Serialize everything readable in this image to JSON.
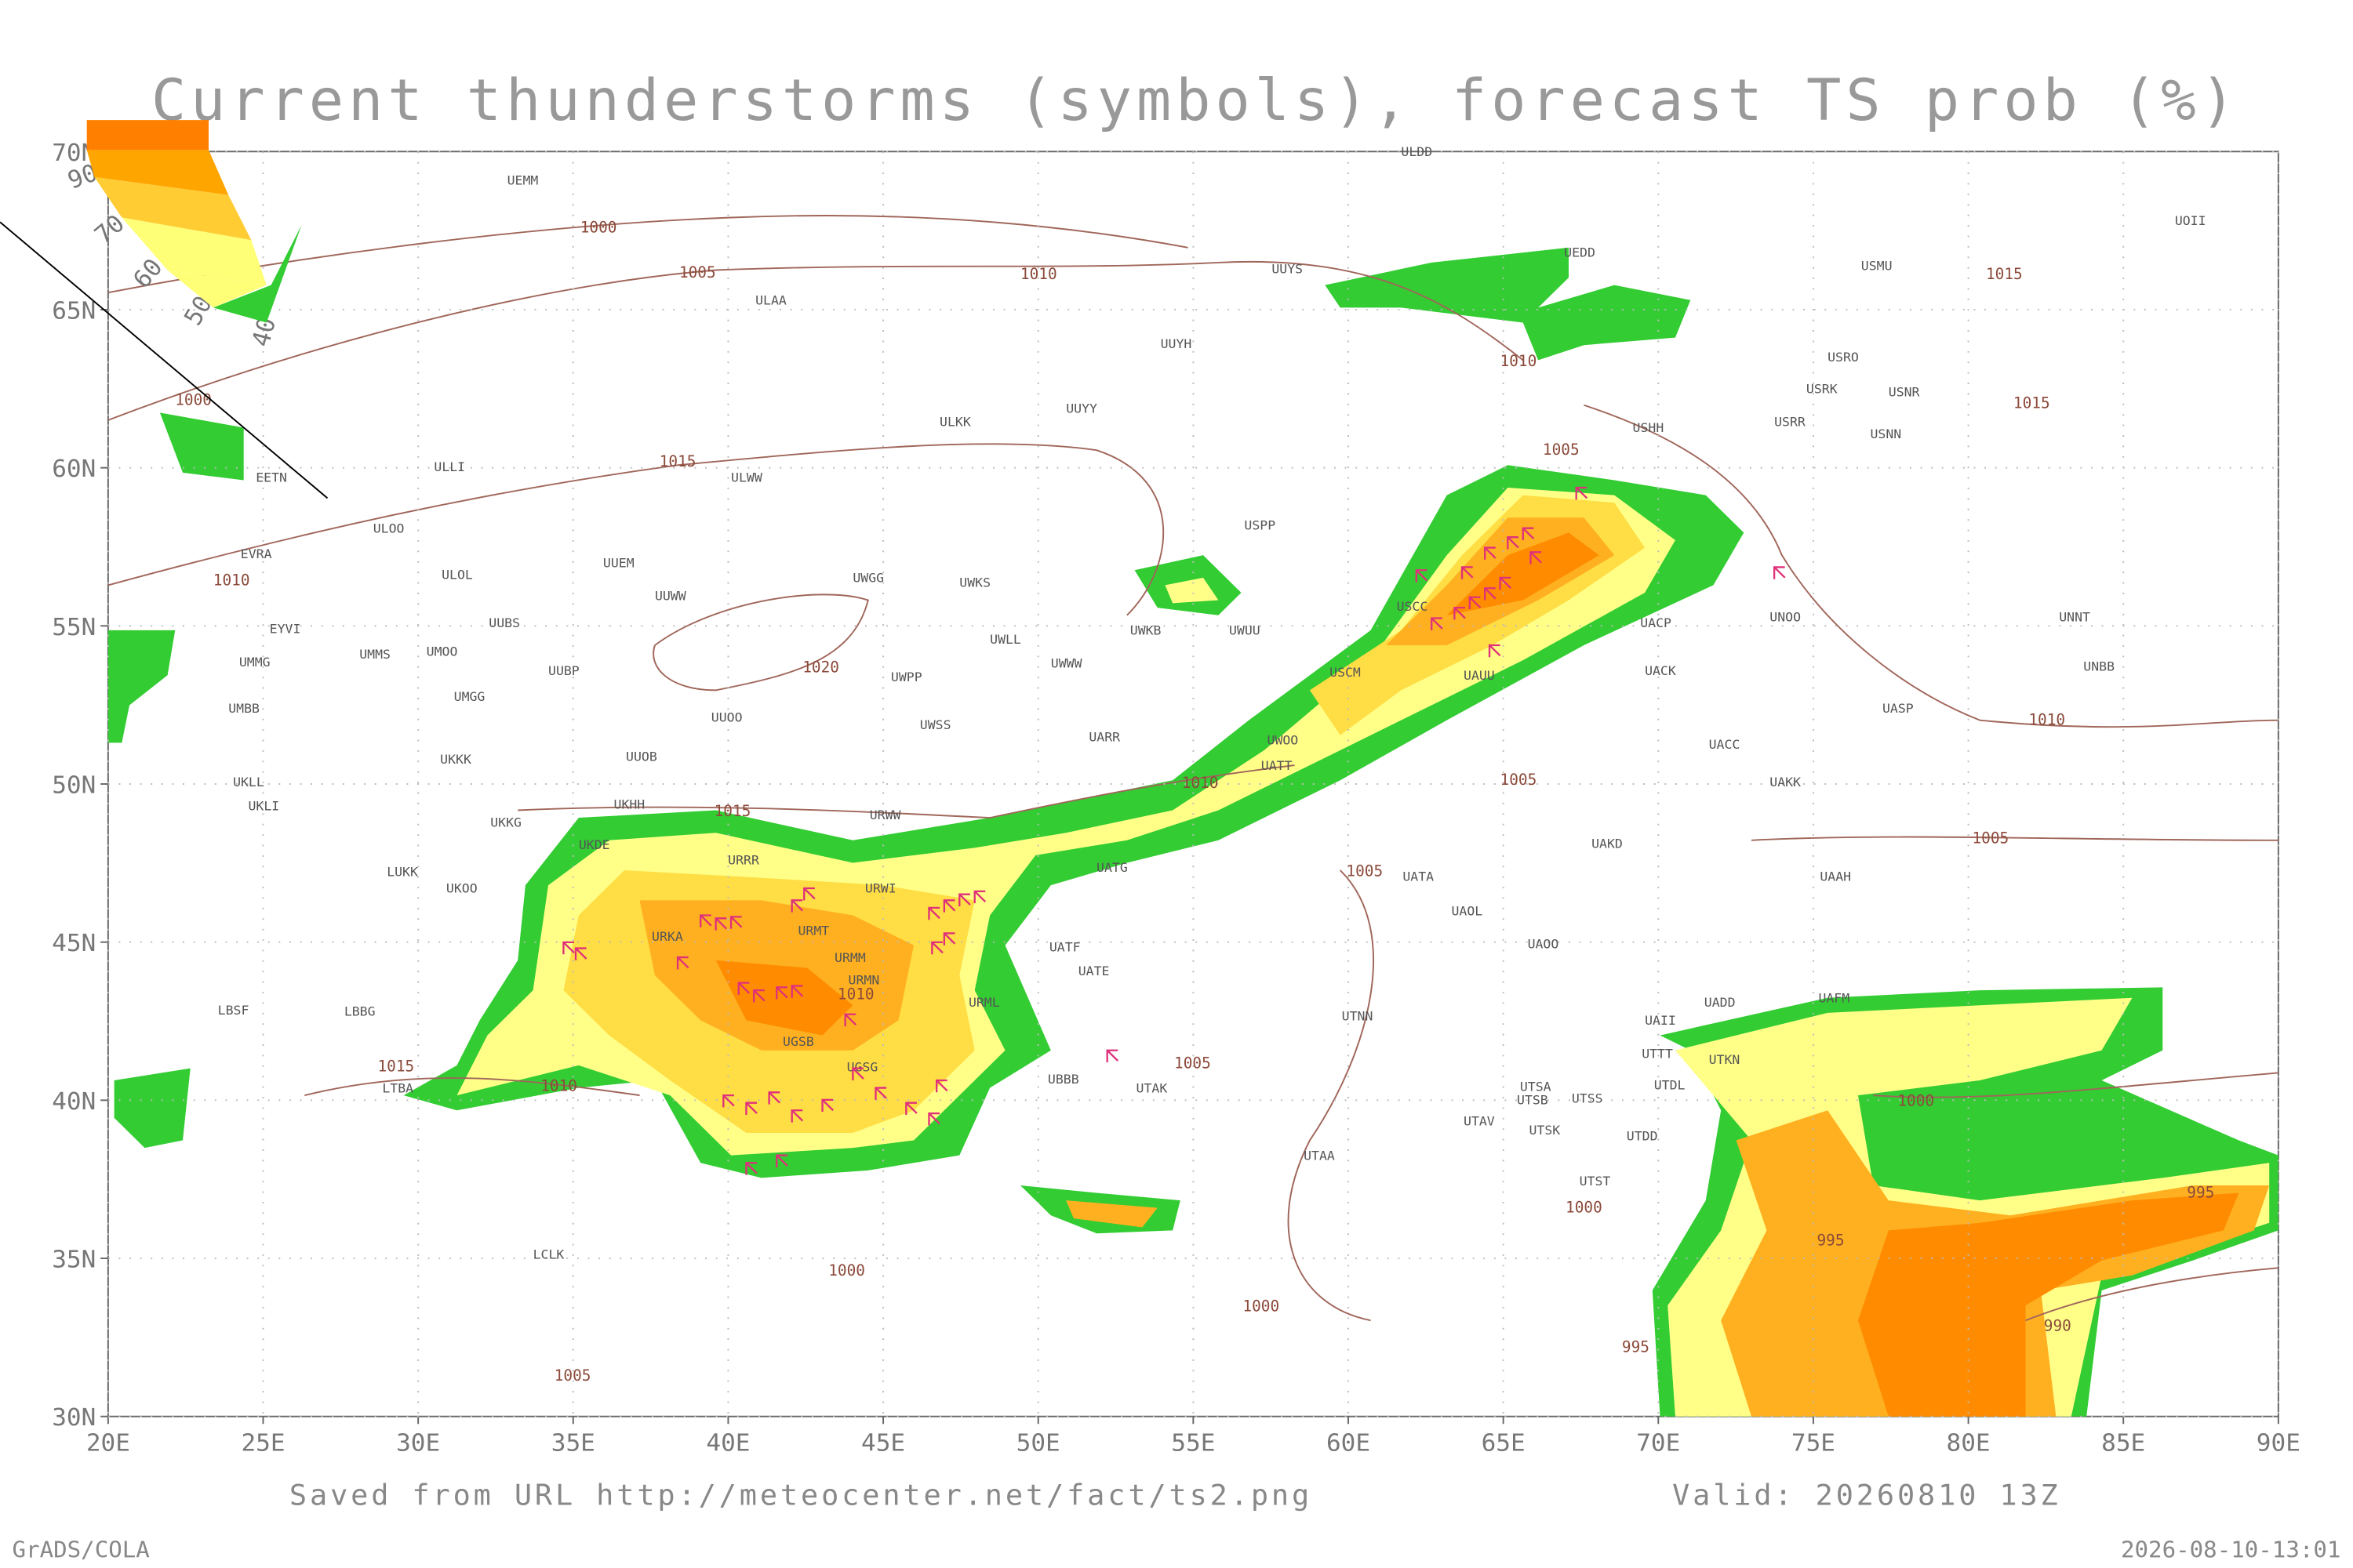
{
  "map": {
    "title": "Current thunderstorms (symbols), forecast TS prob (%)",
    "lon_ticks": [
      {
        "value": 20,
        "label": "20E"
      },
      {
        "value": 25,
        "label": "25E"
      },
      {
        "value": 30,
        "label": "30E"
      },
      {
        "value": 35,
        "label": "35E"
      },
      {
        "value": 40,
        "label": "40E"
      },
      {
        "value": 45,
        "label": "45E"
      },
      {
        "value": 50,
        "label": "50E"
      },
      {
        "value": 55,
        "label": "55E"
      },
      {
        "value": 60,
        "label": "60E"
      },
      {
        "value": 65,
        "label": "65E"
      },
      {
        "value": 70,
        "label": "70E"
      },
      {
        "value": 75,
        "label": "75E"
      },
      {
        "value": 80,
        "label": "80E"
      },
      {
        "value": 85,
        "label": "85E"
      },
      {
        "value": 90,
        "label": "90E"
      }
    ],
    "lat_ticks": [
      {
        "value": 30,
        "label": "30N"
      },
      {
        "value": 35,
        "label": "35N"
      },
      {
        "value": 40,
        "label": "40N"
      },
      {
        "value": 45,
        "label": "45N"
      },
      {
        "value": 50,
        "label": "50N"
      },
      {
        "value": 55,
        "label": "55N"
      },
      {
        "value": 60,
        "label": "60N"
      },
      {
        "value": 65,
        "label": "65N"
      },
      {
        "value": 70,
        "label": "70N"
      }
    ],
    "lonlim": [
      20,
      90
    ],
    "latlim": [
      30,
      70
    ],
    "legend_levels": [
      90,
      70,
      60,
      50,
      40
    ],
    "isobar_labels": [
      1000,
      1005,
      1010,
      1010,
      1015,
      1000,
      1015,
      1005,
      1015,
      1010,
      1020,
      1010,
      1010,
      1005,
      1015,
      1005,
      1005,
      1010,
      1015,
      1010,
      1005,
      1000,
      1000,
      995,
      995,
      990,
      995,
      1000,
      1000,
      1005
    ],
    "stations": [
      "UEMM",
      "ULDD",
      "UUYS",
      "UEDD",
      "ULAA",
      "UUYH",
      "USMU",
      "UOII",
      "USRO",
      "USRK",
      "USNR",
      "USRR",
      "USNN",
      "UUYY",
      "ULKK",
      "USHH",
      "ULLI",
      "ULWW",
      "EETN",
      "ULOO",
      "USPP",
      "EVRA",
      "ULOL",
      "UUEM",
      "UWGG",
      "UWKS",
      "USCC",
      "UUWW",
      "UUBS",
      "EYVI",
      "UMMS",
      "UMOO",
      "UMMG",
      "UWKB",
      "UWUU",
      "UWLL",
      "UWWW",
      "UUBP",
      "UWPP",
      "UMBB",
      "UMGG",
      "UUOO",
      "UWSS",
      "UARR",
      "UATT",
      "UUOB",
      "UKKK",
      "UKLL",
      "UKLI",
      "UKKG",
      "UKHH",
      "UKDE",
      "URRR",
      "URWW",
      "UATG",
      "LUKK",
      "UKOO",
      "URWI",
      "URMT",
      "URKA",
      "URMM",
      "URMN",
      "LBSF",
      "LBBG",
      "URML",
      "UATE",
      "UATF",
      "UGSB",
      "LTBA",
      "UBBB",
      "UGSG",
      "LCLK",
      "UTAA",
      "UTAK",
      "UTNN",
      "UTTT",
      "UTKN",
      "UTDL",
      "UTSB",
      "UTSS",
      "UTAV",
      "UTSK",
      "UTDD",
      "UTST",
      "UAII",
      "UADD",
      "UAFM",
      "UTSA",
      "UAOL",
      "UAOO",
      "UATA",
      "UAKD",
      "UAAH",
      "UACC",
      "UAKK",
      "UACP",
      "UACK",
      "UASP",
      "UNBB",
      "UNNT",
      "UNOO",
      "UAUU",
      "USCM",
      "UWOO"
    ],
    "footer_source": "Saved from URL http://meteocenter.net/fact/ts2.png",
    "footer_valid": "Valid: 20260810 13Z",
    "credit": "GrADS/COLA",
    "timestamp": "2026-08-10-13:01"
  }
}
